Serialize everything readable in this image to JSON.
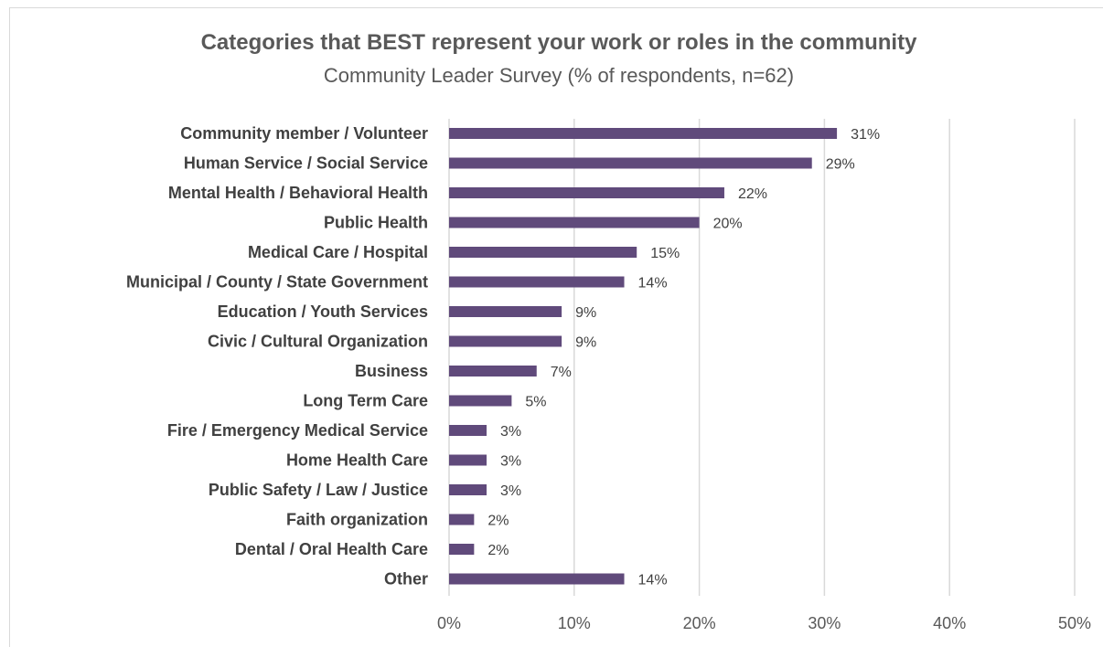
{
  "chart_data": {
    "type": "bar",
    "orientation": "horizontal",
    "title": "Categories that BEST represent your work or roles in the community",
    "subtitle": "Community Leader Survey  (% of respondents, n=62)",
    "xlabel": "",
    "ylabel": "",
    "categories": [
      "Community member / Volunteer",
      "Human Service / Social Service",
      "Mental Health / Behavioral Health",
      "Public Health",
      "Medical Care / Hospital",
      "Municipal / County / State Government",
      "Education / Youth Services",
      "Civic / Cultural Organization",
      "Business",
      "Long Term Care",
      "Fire / Emergency Medical Service",
      "Home Health Care",
      "Public Safety / Law / Justice",
      "Faith organization",
      "Dental / Oral Health Care",
      "Other"
    ],
    "values": [
      31,
      29,
      22,
      20,
      15,
      14,
      9,
      9,
      7,
      5,
      3,
      3,
      3,
      2,
      2,
      14
    ],
    "value_labels": [
      "31%",
      "29%",
      "22%",
      "20%",
      "15%",
      "14%",
      "9%",
      "9%",
      "7%",
      "5%",
      "3%",
      "3%",
      "3%",
      "2%",
      "2%",
      "14%"
    ],
    "xlim": [
      0,
      50
    ],
    "x_ticks": [
      0,
      10,
      20,
      30,
      40,
      50
    ],
    "x_tick_labels": [
      "0%",
      "10%",
      "20%",
      "30%",
      "40%",
      "50%"
    ],
    "grid": "vertical",
    "legend": "none",
    "bar_color": "#604A7B",
    "grid_color": "#d9d9d9"
  }
}
